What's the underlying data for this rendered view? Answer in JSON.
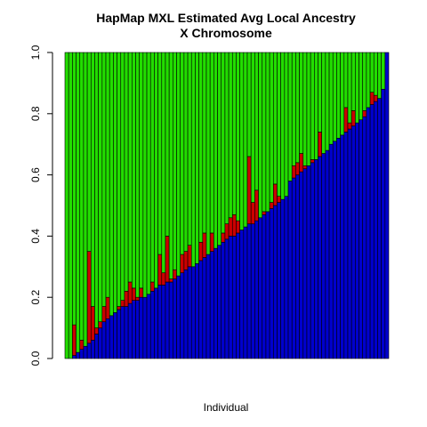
{
  "chart_data": {
    "type": "bar",
    "stacked": true,
    "title": "HapMap MXL Estimated Avg Local Ancestry",
    "subtitle": "X Chromosome",
    "xlabel": "Individual",
    "ylabel": "",
    "ylim": [
      0,
      1
    ],
    "yticks": [
      "0.0",
      "0.2",
      "0.4",
      "0.6",
      "0.8",
      "1.0"
    ],
    "grid": false,
    "legend": "none",
    "colors": {
      "blue": "#0000CD",
      "red": "#CC0000",
      "green": "#22DD00",
      "outline": "#000000"
    },
    "blue": [
      0.0,
      0.0,
      0.01,
      0.02,
      0.03,
      0.04,
      0.05,
      0.06,
      0.08,
      0.1,
      0.12,
      0.13,
      0.14,
      0.15,
      0.16,
      0.17,
      0.17,
      0.18,
      0.19,
      0.19,
      0.2,
      0.2,
      0.21,
      0.22,
      0.23,
      0.24,
      0.24,
      0.25,
      0.25,
      0.26,
      0.27,
      0.28,
      0.29,
      0.3,
      0.3,
      0.31,
      0.32,
      0.33,
      0.34,
      0.35,
      0.36,
      0.37,
      0.38,
      0.39,
      0.4,
      0.4,
      0.41,
      0.42,
      0.43,
      0.44,
      0.44,
      0.45,
      0.46,
      0.47,
      0.48,
      0.49,
      0.5,
      0.51,
      0.52,
      0.53,
      0.58,
      0.59,
      0.6,
      0.61,
      0.62,
      0.63,
      0.64,
      0.65,
      0.66,
      0.67,
      0.68,
      0.7,
      0.71,
      0.72,
      0.73,
      0.74,
      0.75,
      0.76,
      0.77,
      0.78,
      0.79,
      0.82,
      0.83,
      0.84,
      0.85,
      0.88,
      1.0
    ],
    "red": [
      0.0,
      0.0,
      0.1,
      0.0,
      0.03,
      0.0,
      0.3,
      0.11,
      0.02,
      0.02,
      0.05,
      0.07,
      0.0,
      0.0,
      0.01,
      0.02,
      0.05,
      0.07,
      0.04,
      0.01,
      0.03,
      0.0,
      0.0,
      0.03,
      0.0,
      0.1,
      0.04,
      0.15,
      0.01,
      0.03,
      0.0,
      0.06,
      0.06,
      0.07,
      0.0,
      0.0,
      0.06,
      0.08,
      0.0,
      0.06,
      0.0,
      0.0,
      0.03,
      0.05,
      0.06,
      0.07,
      0.04,
      0.0,
      0.0,
      0.22,
      0.07,
      0.1,
      0.0,
      0.01,
      0.0,
      0.02,
      0.07,
      0.02,
      0.0,
      0.0,
      0.0,
      0.04,
      0.04,
      0.06,
      0.01,
      0.0,
      0.01,
      0.0,
      0.08,
      0.0,
      0.0,
      0.0,
      0.0,
      0.0,
      0.0,
      0.08,
      0.02,
      0.05,
      0.0,
      0.0,
      0.02,
      0.0,
      0.04,
      0.02,
      0.0,
      0.0,
      0.0
    ]
  }
}
